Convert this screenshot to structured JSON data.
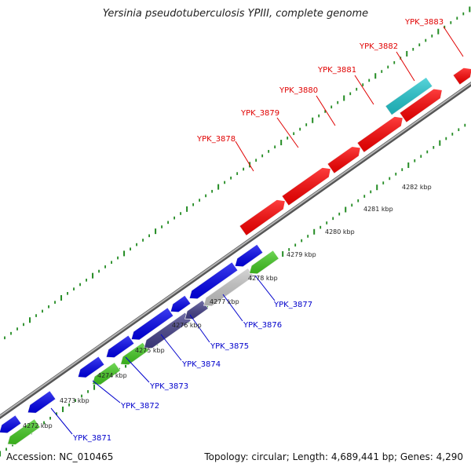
{
  "title": "Yersinia pseudotuberculosis YPIII, complete genome",
  "accession": "Accession: NC_010465",
  "summary": "Topology: circular; Length: 4,689,441 bp; Genes: 4,290",
  "colors": {
    "forward_cds": "#ff0000",
    "reverse_cds": "#0000ee",
    "green": "#44cc22",
    "purple": "#44408a",
    "gray": "#c8c8c8",
    "cyan": "#22c8d0",
    "backbone": "#888888",
    "ticks": "#228b22",
    "forward_label": "#e00000",
    "reverse_label": "#0000cc"
  },
  "kbp_labels": [
    "4272 kbp",
    "4273 kbp",
    "4274 kbp",
    "4275 kbp",
    "4276 kbp",
    "4277 kbp",
    "4278 kbp",
    "4279 kbp",
    "4280 kbp",
    "4281 kbp",
    "4282 kbp"
  ],
  "forward_genes": [
    "YPK_3878",
    "YPK_3879",
    "YPK_3880",
    "YPK_3881",
    "YPK_3882",
    "YPK_3883"
  ],
  "reverse_genes": [
    "YPK_3871",
    "YPK_3872",
    "YPK_3873",
    "YPK_3874",
    "YPK_3875",
    "YPK_3876",
    "YPK_3877"
  ]
}
